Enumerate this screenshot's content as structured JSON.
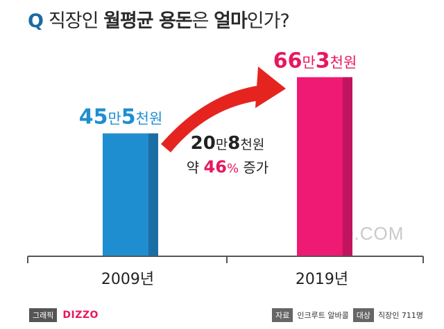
{
  "title": {
    "q": "Q",
    "prefix": "직장인 ",
    "bold1": "월평균 용돈",
    "mid": "은 ",
    "bold2": "얼마",
    "suffix": "인가?"
  },
  "chart_data": {
    "type": "bar",
    "title": "직장인 월평균 용돈은 얼마인가?",
    "categories": [
      "2009년",
      "2019년"
    ],
    "values": [
      45.5,
      66.3
    ],
    "unit": "만원",
    "ylim": [
      0,
      80
    ],
    "value_labels": [
      {
        "num1": "45",
        "unit1": "만",
        "num2": "5",
        "unit2": "천원"
      },
      {
        "num1": "66",
        "unit1": "만",
        "num2": "3",
        "unit2": "천원"
      }
    ],
    "colors": [
      "#1f8ed0",
      "#ee1a74"
    ],
    "shade_colors": [
      "#1a6ea4",
      "#c1145e"
    ],
    "label_colors": [
      "#1f8ed0",
      "#e8175d"
    ],
    "annotation": {
      "line1_num1": "20",
      "line1_unit1": "만",
      "line1_num2": "8",
      "line1_unit2": "천원",
      "line2_prefix": "약 ",
      "line2_pct": "46",
      "line2_pct_sign": "%",
      "line2_suffix": " 증가",
      "pct_color": "#e8175d",
      "arrow_color": "#e52420"
    },
    "watermark": "DIZZO.COM"
  },
  "footer": {
    "graphic_tag": "그래픽",
    "brand": "DIZZO",
    "source_tag": "자료",
    "source": "인크루트 알바콜",
    "target_tag": "대상",
    "target": "직장인 711명"
  }
}
